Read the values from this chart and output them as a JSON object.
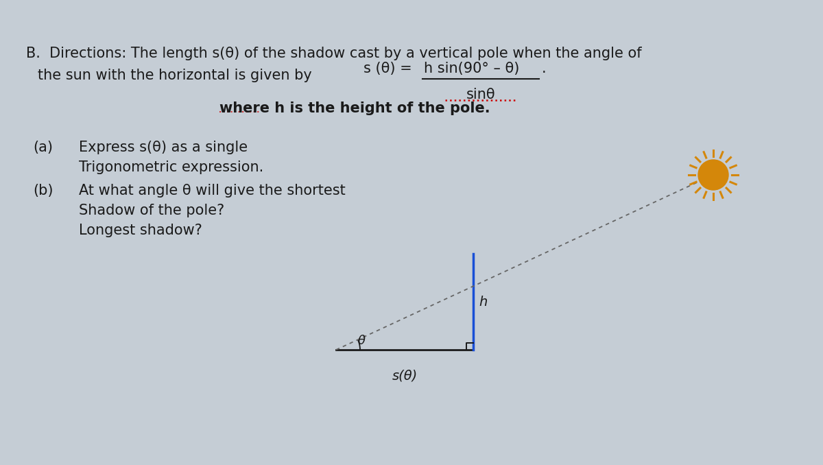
{
  "bg_color": "#c5cdd5",
  "title_line1": "B.  Directions: The length s(θ) of the shadow cast by a vertical pole when the angle of",
  "title_line2": "the sun with the horizontal is given by",
  "formula_left": "s (θ) =",
  "formula_numerator": "h sin(90° – θ)",
  "formula_denominator": "sinθ",
  "formula_period": ".",
  "where_text": "where h is the height of the pole.",
  "part_a_label": "(a)",
  "part_a_text1": "Express s(θ) as a single",
  "part_a_text2": "Trigonometric expression.",
  "part_b_label": "(b)",
  "part_b_text1": "At what angle θ will give the shortest",
  "part_b_text2": "Shadow of the pole?",
  "part_b_text3": "Longest shadow?",
  "diagram": {
    "theta_label": "θ",
    "h_label": "h",
    "s_label": "s(θ)",
    "sun_color": "#d4870a",
    "pole_color": "#1a4fd6",
    "ground_color": "#1a1a1a",
    "dashed_color": "#666666"
  },
  "text_color": "#1a1a1a",
  "font_size_main": 15,
  "font_size_small": 13
}
